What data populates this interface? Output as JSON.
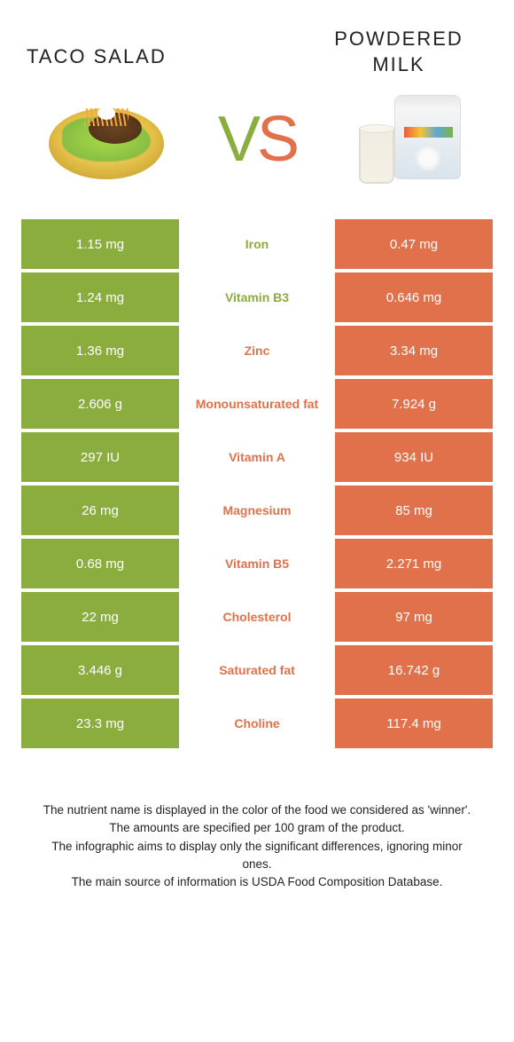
{
  "titles": {
    "left": "Taco salad",
    "right": "Powdered milk"
  },
  "vs": {
    "v": "V",
    "s": "S"
  },
  "colors": {
    "green": "#8aad3e",
    "orange": "#e1714a",
    "background": "#ffffff"
  },
  "rows": [
    {
      "left": "1.15 mg",
      "name": "Iron",
      "right": "0.47 mg",
      "winner": "green"
    },
    {
      "left": "1.24 mg",
      "name": "Vitamin B3",
      "right": "0.646 mg",
      "winner": "green"
    },
    {
      "left": "1.36 mg",
      "name": "Zinc",
      "right": "3.34 mg",
      "winner": "orange"
    },
    {
      "left": "2.606 g",
      "name": "Monounsaturated fat",
      "right": "7.924 g",
      "winner": "orange"
    },
    {
      "left": "297 IU",
      "name": "Vitamin A",
      "right": "934 IU",
      "winner": "orange"
    },
    {
      "left": "26 mg",
      "name": "Magnesium",
      "right": "85 mg",
      "winner": "orange"
    },
    {
      "left": "0.68 mg",
      "name": "Vitamin B5",
      "right": "2.271 mg",
      "winner": "orange"
    },
    {
      "left": "22 mg",
      "name": "Cholesterol",
      "right": "97 mg",
      "winner": "orange"
    },
    {
      "left": "3.446 g",
      "name": "Saturated fat",
      "right": "16.742 g",
      "winner": "orange"
    },
    {
      "left": "23.3 mg",
      "name": "Choline",
      "right": "117.4 mg",
      "winner": "orange"
    }
  ],
  "footer": {
    "l1": "The nutrient name is displayed in the color of the food we considered as 'winner'.",
    "l2": "The amounts are specified per 100 gram of the product.",
    "l3": "The infographic aims to display only the significant differences, ignoring minor ones.",
    "l4": "The main source of information is USDA Food Composition Database."
  }
}
